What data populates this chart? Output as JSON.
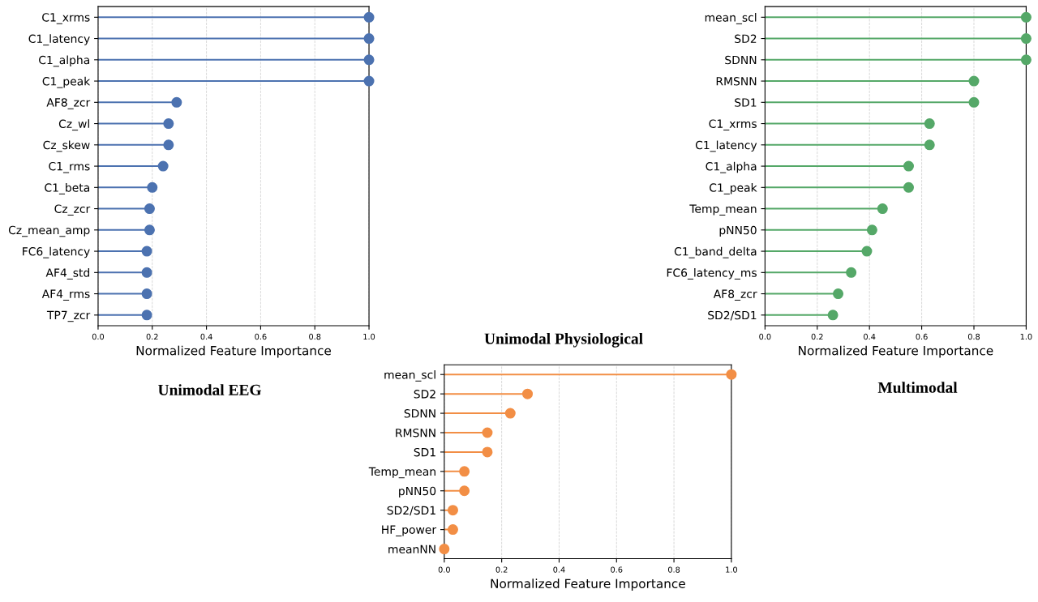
{
  "chart_data": [
    {
      "type": "lollipop",
      "title": "Unimodal EEG",
      "xlabel": "Normalized Feature Importance",
      "orientation": "horizontal",
      "categories": [
        "C1_xrms",
        "C1_latency",
        "C1_alpha",
        "C1_peak",
        "AF8_zcr",
        "Cz_wl",
        "Cz_skew",
        "C1_rms",
        "C1_beta",
        "Cz_zcr",
        "Cz_mean_amp",
        "FC6_latency",
        "AF4_std",
        "AF4_rms",
        "TP7_zcr"
      ],
      "values": [
        1.0,
        1.0,
        1.0,
        1.0,
        0.29,
        0.26,
        0.26,
        0.24,
        0.2,
        0.19,
        0.19,
        0.18,
        0.18,
        0.18,
        0.18
      ],
      "color": "#4c72b0",
      "xlim": [
        0,
        1
      ],
      "xticks": [
        {
          "value": 0,
          "label": "0.0"
        },
        {
          "value": 0.2,
          "label": "0.2"
        },
        {
          "value": 0.4,
          "label": "0.4"
        },
        {
          "value": 0.6,
          "label": "0.6"
        },
        {
          "value": 0.8,
          "label": "0.8"
        },
        {
          "value": 1,
          "label": "1.0"
        }
      ],
      "grid": "x",
      "marker": "circle"
    },
    {
      "type": "lollipop",
      "title": "Unimodal Physiological",
      "xlabel": "Normalized Feature Importance",
      "orientation": "horizontal",
      "categories": [
        "mean_scl",
        "SD2",
        "SDNN",
        "RMSNN",
        "SD1",
        "Temp_mean",
        "pNN50",
        "SD2/SD1",
        "HF_power",
        "meanNN"
      ],
      "values": [
        1.0,
        0.29,
        0.23,
        0.15,
        0.15,
        0.07,
        0.07,
        0.03,
        0.03,
        0.0
      ],
      "color": "#f28e45",
      "xlim": [
        0,
        1
      ],
      "xticks": [
        {
          "value": 0,
          "label": "0.0"
        },
        {
          "value": 0.2,
          "label": "0.2"
        },
        {
          "value": 0.4,
          "label": "0.4"
        },
        {
          "value": 0.6,
          "label": "0.6"
        },
        {
          "value": 0.8,
          "label": "0.8"
        },
        {
          "value": 1,
          "label": "1.0"
        }
      ],
      "grid": "x",
      "marker": "circle"
    },
    {
      "type": "lollipop",
      "title": "Multimodal",
      "xlabel": "Normalized Feature Importance",
      "orientation": "horizontal",
      "categories": [
        "mean_scl",
        "SD2",
        "SDNN",
        "RMSNN",
        "SD1",
        "C1_xrms",
        "C1_latency",
        "C1_alpha",
        "C1_peak",
        "Temp_mean",
        "pNN50",
        "C1_band_delta",
        "FC6_latency_ms",
        "AF8_zcr",
        "SD2/SD1"
      ],
      "values": [
        1.0,
        1.0,
        1.0,
        0.8,
        0.8,
        0.63,
        0.63,
        0.55,
        0.55,
        0.45,
        0.41,
        0.39,
        0.33,
        0.28,
        0.26
      ],
      "color": "#55a868",
      "xlim": [
        0,
        1
      ],
      "xticks": [
        {
          "value": 0,
          "label": "0.0"
        },
        {
          "value": 0.2,
          "label": "0.2"
        },
        {
          "value": 0.4,
          "label": "0.4"
        },
        {
          "value": 0.6,
          "label": "0.6"
        },
        {
          "value": 0.8,
          "label": "0.8"
        },
        {
          "value": 1,
          "label": "1.0"
        }
      ],
      "grid": "x",
      "marker": "circle"
    }
  ]
}
